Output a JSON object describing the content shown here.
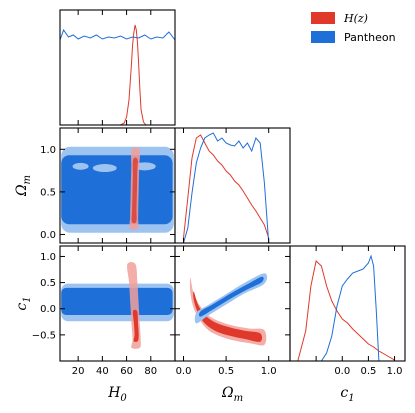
{
  "chart_data": {
    "type": "corner",
    "parameters": [
      {
        "name": "H0",
        "label_main": "H",
        "label_sub": "0",
        "range": [
          5,
          100
        ],
        "ticks": [
          20,
          40,
          60,
          80
        ],
        "tick_labels": [
          "20",
          "40",
          "60",
          "80"
        ]
      },
      {
        "name": "Omega_m",
        "label_main": "Ω",
        "label_sub": "m",
        "range": [
          -0.1,
          1.25
        ],
        "ticks": [
          0.0,
          0.5,
          1.0
        ],
        "tick_labels": [
          "0.0",
          "0.5",
          "1.0"
        ]
      },
      {
        "name": "c1",
        "label_main": "c",
        "label_sub": "1",
        "range": [
          -1.0,
          1.2
        ],
        "ticks": [
          -0.5,
          0.0,
          0.5,
          1.0
        ],
        "tick_labels": [
          "−0.5",
          "0.0",
          "0.5",
          "1.0"
        ]
      }
    ],
    "legend": {
      "placement": "top-right",
      "entries": [
        {
          "label": "H(z)",
          "color": "#e0392b"
        },
        {
          "label": "Pantheon",
          "color": "#1f6fd8"
        }
      ]
    },
    "series": [
      {
        "name": "H(z)",
        "color": "#e0392b",
        "fill_inner": "#e0392b",
        "fill_outer": "#f2a09a",
        "marginals": {
          "H0": {
            "x": [
              55,
              58,
              60,
              62,
              64,
              65,
              66,
              67,
              68,
              69,
              70,
              71,
              72,
              74,
              76
            ],
            "y": [
              0.0,
              0.02,
              0.08,
              0.25,
              0.6,
              0.8,
              0.92,
              1.0,
              0.95,
              0.82,
              0.6,
              0.35,
              0.15,
              0.03,
              0.0
            ]
          },
          "Omega_m": {
            "x": [
              0.0,
              0.05,
              0.1,
              0.15,
              0.2,
              0.25,
              0.3,
              0.35,
              0.4,
              0.45,
              0.5,
              0.55,
              0.6,
              0.65,
              0.7,
              0.75,
              0.8,
              0.85,
              0.9,
              0.95,
              1.0
            ],
            "y": [
              0.05,
              0.45,
              0.85,
              1.05,
              1.08,
              1.0,
              0.92,
              0.88,
              0.82,
              0.78,
              0.72,
              0.68,
              0.62,
              0.58,
              0.52,
              0.45,
              0.38,
              0.32,
              0.25,
              0.18,
              0.05
            ]
          },
          "c1": {
            "x": [
              -0.85,
              -0.7,
              -0.6,
              -0.5,
              -0.4,
              -0.3,
              -0.2,
              -0.1,
              0.0,
              0.1,
              0.2,
              0.3,
              0.4,
              0.5,
              0.6,
              0.7,
              0.8,
              0.9,
              1.0
            ],
            "y": [
              0.0,
              0.3,
              0.75,
              1.0,
              0.95,
              0.75,
              0.6,
              0.5,
              0.42,
              0.38,
              0.32,
              0.27,
              0.22,
              0.17,
              0.14,
              0.1,
              0.07,
              0.04,
              0.01
            ]
          }
        }
      },
      {
        "name": "Pantheon",
        "color": "#1f6fd8",
        "fill_inner": "#1f6fd8",
        "fill_outer": "#9dc3f0",
        "marginals": {
          "H0": {
            "x": [
              5,
              8,
              12,
              16,
              20,
              25,
              30,
              35,
              40,
              45,
              50,
              55,
              60,
              65,
              70,
              75,
              80,
              85,
              90,
              95,
              100
            ],
            "y": [
              0.85,
              0.95,
              0.88,
              0.9,
              0.86,
              0.89,
              0.87,
              0.9,
              0.86,
              0.88,
              0.87,
              0.89,
              0.86,
              0.88,
              0.87,
              0.9,
              0.86,
              0.88,
              0.87,
              0.93,
              0.85
            ]
          },
          "Omega_m": {
            "x": [
              0.0,
              0.05,
              0.1,
              0.15,
              0.2,
              0.25,
              0.3,
              0.35,
              0.4,
              0.45,
              0.5,
              0.55,
              0.6,
              0.65,
              0.7,
              0.75,
              0.8,
              0.85,
              0.9,
              0.95,
              1.0
            ],
            "y": [
              0.0,
              0.15,
              0.5,
              0.8,
              0.95,
              1.05,
              1.08,
              1.1,
              1.02,
              1.05,
              1.0,
              0.98,
              0.97,
              1.02,
              0.95,
              1.0,
              0.92,
              1.05,
              1.0,
              0.6,
              0.0
            ]
          },
          "c1": {
            "x": [
              -0.4,
              -0.3,
              -0.2,
              -0.1,
              0.0,
              0.1,
              0.2,
              0.3,
              0.4,
              0.5,
              0.55,
              0.6,
              0.65,
              0.7
            ],
            "y": [
              0.0,
              0.08,
              0.25,
              0.55,
              0.75,
              0.82,
              0.88,
              0.9,
              0.92,
              0.98,
              1.05,
              0.95,
              0.5,
              0.0
            ]
          }
        }
      }
    ],
    "panels": [
      {
        "row": 0,
        "col": 0,
        "kind": "marginal",
        "param": "H0"
      },
      {
        "row": 1,
        "col": 0,
        "kind": "joint",
        "x": "H0",
        "y": "Omega_m"
      },
      {
        "row": 1,
        "col": 1,
        "kind": "marginal",
        "param": "Omega_m"
      },
      {
        "row": 2,
        "col": 0,
        "kind": "joint",
        "x": "H0",
        "y": "c1"
      },
      {
        "row": 2,
        "col": 1,
        "kind": "joint",
        "x": "Omega_m",
        "y": "c1"
      },
      {
        "row": 2,
        "col": 2,
        "kind": "marginal",
        "param": "c1"
      }
    ]
  }
}
